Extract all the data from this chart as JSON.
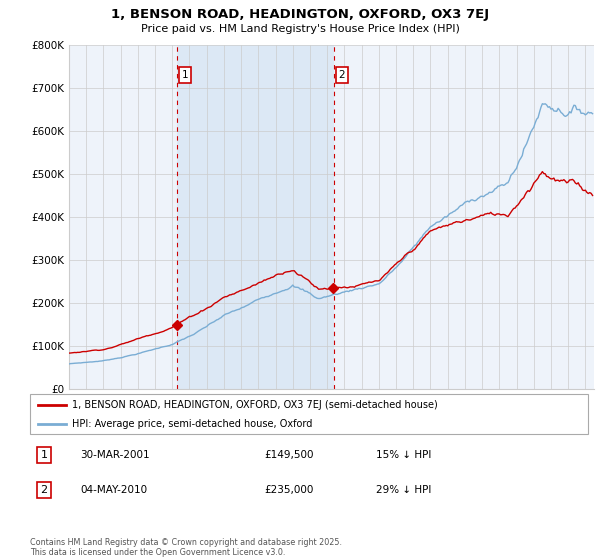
{
  "title_line1": "1, BENSON ROAD, HEADINGTON, OXFORD, OX3 7EJ",
  "title_line2": "Price paid vs. HM Land Registry's House Price Index (HPI)",
  "legend_label_red": "1, BENSON ROAD, HEADINGTON, OXFORD, OX3 7EJ (semi-detached house)",
  "legend_label_blue": "HPI: Average price, semi-detached house, Oxford",
  "marker1_date": "30-MAR-2001",
  "marker1_price": "£149,500",
  "marker1_hpi": "15% ↓ HPI",
  "marker1_x": 2001.25,
  "marker1_y": 149500,
  "marker2_date": "04-MAY-2010",
  "marker2_price": "£235,000",
  "marker2_hpi": "29% ↓ HPI",
  "marker2_x": 2010.37,
  "marker2_y": 235000,
  "footnote": "Contains HM Land Registry data © Crown copyright and database right 2025.\nThis data is licensed under the Open Government Licence v3.0.",
  "ylim": [
    0,
    800000
  ],
  "yticks": [
    0,
    100000,
    200000,
    300000,
    400000,
    500000,
    600000,
    700000,
    800000
  ],
  "ytick_labels": [
    "£0",
    "£100K",
    "£200K",
    "£300K",
    "£400K",
    "£500K",
    "£600K",
    "£700K",
    "£800K"
  ],
  "red_color": "#cc0000",
  "blue_color": "#7aadd4",
  "shade_color": "#dce8f5",
  "vline_color": "#cc0000",
  "grid_color": "#cccccc",
  "plot_bg_color": "#eef3fa",
  "xlim_start": 1995,
  "xlim_end": 2025.5
}
